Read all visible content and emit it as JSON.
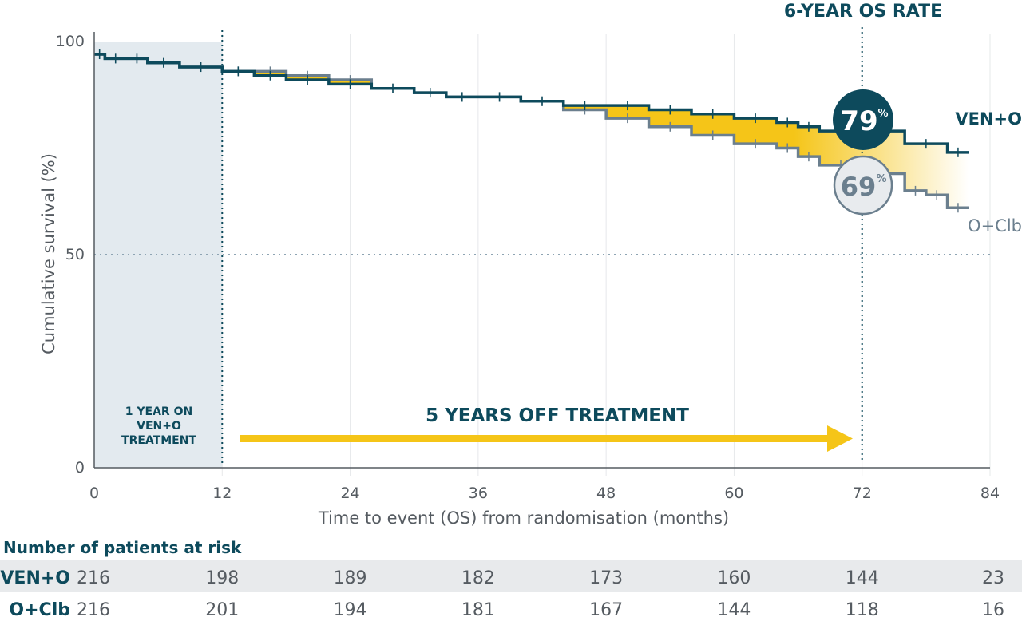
{
  "chart_data": {
    "type": "line",
    "title": "6-YEAR OS RATE",
    "xlabel": "Time to event (OS) from randomisation (months)",
    "ylabel": "Cumulative survival (%)",
    "xlim": [
      0,
      84
    ],
    "ylim": [
      0,
      100
    ],
    "x_ticks": [
      "0",
      "12",
      "24",
      "36",
      "48",
      "60",
      "72",
      "84"
    ],
    "y_ticks": [
      "0",
      "50",
      "100"
    ],
    "grid": "vertical lines at each 12-month tick",
    "series": [
      {
        "name": "VEN+O",
        "color": "#0d4a5c",
        "x": [
          0,
          1,
          3,
          5,
          8,
          12,
          15,
          18,
          22,
          26,
          30,
          33,
          36,
          40,
          44,
          48,
          52,
          56,
          60,
          64,
          66,
          68,
          72,
          76,
          80,
          82
        ],
        "y": [
          97,
          96,
          96,
          95,
          94,
          93,
          92,
          91,
          90,
          89,
          88,
          87,
          87,
          86,
          85,
          85,
          84,
          83,
          82,
          81,
          80,
          79,
          79,
          76,
          74,
          74
        ]
      },
      {
        "name": "O+Clb",
        "color": "#6b7f8e",
        "x": [
          0,
          1,
          3,
          5,
          8,
          12,
          15,
          18,
          22,
          26,
          30,
          33,
          36,
          40,
          44,
          48,
          52,
          56,
          60,
          64,
          66,
          68,
          72,
          76,
          78,
          80,
          82
        ],
        "y": [
          97,
          96,
          96,
          95,
          94,
          93,
          93,
          92,
          91,
          89,
          88,
          87,
          87,
          86,
          84,
          82,
          80,
          78,
          76,
          75,
          73,
          71,
          69,
          65,
          64,
          61,
          61
        ]
      }
    ],
    "annotations": {
      "ven_rate": "79",
      "clb_rate": "69",
      "percent_sign": "%",
      "treatment_on": [
        "1 YEAR ON",
        "VEN+O",
        "TREATMENT"
      ],
      "treatment_off": "5 YEARS OFF TREATMENT",
      "marker_months": [
        12,
        72
      ],
      "reference_level": 50
    },
    "colors": {
      "ven": "#0d4a5c",
      "clb": "#6b7f8e",
      "highlight": "#f5c518",
      "shade": "#e3eaef"
    }
  },
  "risk_table": {
    "title": "Number of patients at risk",
    "rows": [
      {
        "name": "VEN+O",
        "values": [
          "216",
          "198",
          "189",
          "182",
          "173",
          "160",
          "144",
          "23"
        ]
      },
      {
        "name": "O+Clb",
        "values": [
          "216",
          "201",
          "194",
          "181",
          "167",
          "144",
          "118",
          "16"
        ]
      }
    ]
  }
}
